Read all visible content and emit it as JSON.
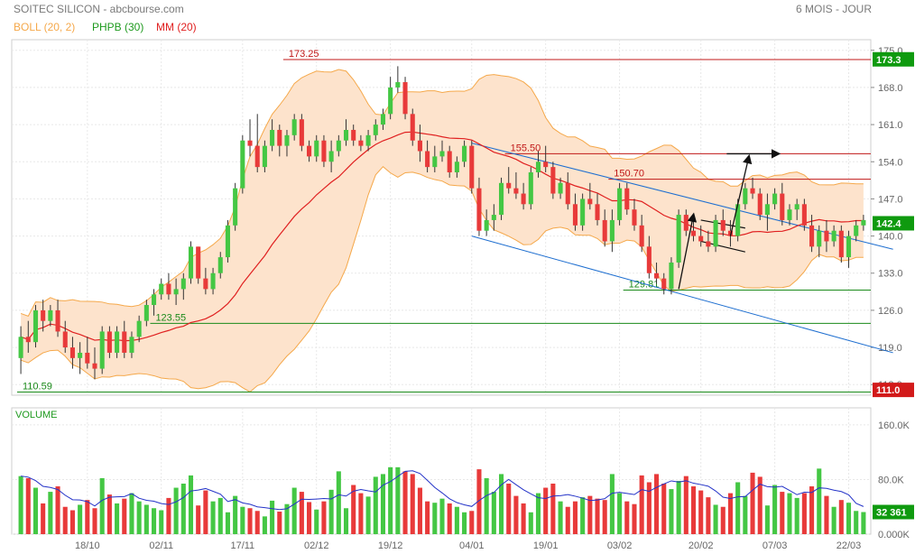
{
  "header": {
    "title": "SOITEC SILICON - abcbourse.com",
    "period": "6 MOIS - JOUR"
  },
  "legend": [
    {
      "label": "BOLL (20, 2)",
      "color": "#f5a84a"
    },
    {
      "label": "PHPB (30)",
      "color": "#1e9a1e"
    },
    {
      "label": "MM (20)",
      "color": "#e02020"
    }
  ],
  "colors": {
    "up": "#44c744",
    "down": "#e83a3a",
    "band_fill": "#fde3cc",
    "band_line": "#f5a84a",
    "mm": "#e02020",
    "volume_avg": "#2433c8",
    "trendline": "#1f6fd0",
    "support": "#1a8a1a",
    "resistance": "#c01818",
    "last_price_tag": "#0f9a0f",
    "low_tag": "#d21a1a"
  },
  "chart_data": {
    "type": "candlestick",
    "price_axis": {
      "range": [
        110,
        177
      ],
      "ticks": [
        "175.0",
        "168.0",
        "161.0",
        "154.0",
        "147.0",
        "140.0",
        "133.0",
        "126.0",
        "119.0",
        "112.0"
      ],
      "tick_values": [
        175,
        168,
        161,
        154,
        147,
        140,
        133,
        126,
        119,
        112
      ]
    },
    "x_axis": {
      "ticks": [
        "18/10",
        "02/11",
        "17/11",
        "02/12",
        "19/12",
        "04/01",
        "19/01",
        "03/02",
        "20/02",
        "07/03",
        "22/03"
      ],
      "tick_index": [
        9,
        19,
        30,
        40,
        50,
        61,
        71,
        81,
        92,
        102,
        112
      ]
    },
    "price_tags": [
      {
        "label": "173.3",
        "value": 173.3,
        "kind": "high"
      },
      {
        "label": "142.4",
        "value": 142.4,
        "kind": "last"
      },
      {
        "label": "111.0",
        "value": 111.0,
        "kind": "low"
      }
    ],
    "level_lines": [
      {
        "label": "173.25",
        "value": 173.25,
        "color_key": "resistance",
        "from": 36
      },
      {
        "label": "155.50",
        "value": 155.5,
        "color_key": "resistance",
        "from": 66
      },
      {
        "label": "150.70",
        "value": 150.7,
        "color_key": "resistance",
        "from": 80
      },
      {
        "label": "129.81",
        "value": 129.81,
        "color_key": "support",
        "from": 82
      },
      {
        "label": "123.55",
        "value": 123.55,
        "color_key": "support",
        "from": 18
      },
      {
        "label": "110.59",
        "value": 110.59,
        "color_key": "support",
        "from": 0
      }
    ],
    "trendlines": [
      {
        "x1": 61,
        "y1": 157.5,
        "x2": 118,
        "y2": 137.5
      },
      {
        "x1": 61,
        "y1": 140.0,
        "x2": 118,
        "y2": 118.0
      }
    ],
    "pattern_lines": [
      {
        "x1": 92,
        "y1": 143.0,
        "x2": 98,
        "y2": 141.5
      },
      {
        "x1": 92,
        "y1": 139.0,
        "x2": 98,
        "y2": 137.0
      }
    ],
    "arrows": [
      {
        "x1": 89,
        "y1": 130.0,
        "x2": 91,
        "y2": 144.0
      },
      {
        "x1": 96,
        "y1": 140.0,
        "x2": 98.5,
        "y2": 155.0
      },
      {
        "x1": 95.5,
        "y1": 155.5,
        "x2": 102.5,
        "y2": 155.5
      }
    ],
    "candles": [
      [
        117,
        123,
        114,
        121
      ],
      [
        121,
        124,
        118,
        120
      ],
      [
        120,
        127,
        119,
        126
      ],
      [
        126,
        128,
        122,
        124
      ],
      [
        124,
        127,
        123,
        126
      ],
      [
        126,
        128,
        121,
        122
      ],
      [
        122,
        124,
        118,
        119
      ],
      [
        119,
        121,
        115,
        117
      ],
      [
        117,
        120,
        114,
        118
      ],
      [
        118,
        121,
        115,
        116
      ],
      [
        116,
        119,
        113,
        115
      ],
      [
        115,
        123,
        114,
        122
      ],
      [
        122,
        123,
        117,
        118
      ],
      [
        118,
        123,
        117,
        122
      ],
      [
        122,
        124,
        117,
        118
      ],
      [
        118,
        122,
        117,
        121
      ],
      [
        121,
        125,
        120,
        124
      ],
      [
        124,
        128,
        123,
        127
      ],
      [
        127,
        130,
        125,
        129
      ],
      [
        129,
        132,
        128,
        131
      ],
      [
        131,
        133,
        128,
        129
      ],
      [
        129,
        132,
        127,
        130
      ],
      [
        130,
        133,
        128,
        132
      ],
      [
        132,
        139,
        131,
        138
      ],
      [
        138,
        138,
        131,
        132
      ],
      [
        132,
        134,
        129,
        130
      ],
      [
        130,
        134,
        129,
        133
      ],
      [
        133,
        137,
        132,
        136
      ],
      [
        136,
        143,
        135,
        142
      ],
      [
        142,
        150,
        141,
        149
      ],
      [
        149,
        159,
        148,
        158
      ],
      [
        158,
        162,
        155,
        157
      ],
      [
        157,
        163,
        152,
        153
      ],
      [
        153,
        158,
        152,
        157
      ],
      [
        157,
        162,
        156,
        160
      ],
      [
        160,
        161,
        155,
        157
      ],
      [
        157,
        160,
        155,
        159
      ],
      [
        159,
        163,
        158,
        162
      ],
      [
        162,
        163,
        156,
        157
      ],
      [
        157,
        158,
        154,
        155
      ],
      [
        155,
        159,
        154,
        158
      ],
      [
        158,
        159,
        153,
        154
      ],
      [
        154,
        158,
        152,
        156
      ],
      [
        156,
        159,
        155,
        158
      ],
      [
        158,
        162,
        157,
        160
      ],
      [
        160,
        161,
        157,
        158
      ],
      [
        158,
        159,
        156,
        157
      ],
      [
        157,
        160,
        156,
        159
      ],
      [
        159,
        162,
        158,
        161
      ],
      [
        161,
        164,
        160,
        163
      ],
      [
        163,
        170,
        162,
        168
      ],
      [
        168,
        172,
        167,
        169
      ],
      [
        169,
        170,
        162,
        163
      ],
      [
        163,
        164,
        157,
        158
      ],
      [
        158,
        161,
        154,
        156
      ],
      [
        156,
        158,
        152,
        153
      ],
      [
        153,
        157,
        152,
        155
      ],
      [
        155,
        158,
        154,
        156
      ],
      [
        156,
        157,
        151,
        152
      ],
      [
        152,
        155,
        151,
        154
      ],
      [
        154,
        158,
        153,
        157
      ],
      [
        157,
        158,
        148,
        149
      ],
      [
        149,
        151,
        140,
        141
      ],
      [
        141,
        145,
        140,
        143
      ],
      [
        143,
        146,
        141,
        144
      ],
      [
        144,
        151,
        143,
        150
      ],
      [
        150,
        153,
        148,
        149
      ],
      [
        149,
        152,
        147,
        148
      ],
      [
        148,
        150,
        145,
        146
      ],
      [
        146,
        153,
        145,
        152
      ],
      [
        152,
        156,
        151,
        154
      ],
      [
        154,
        157,
        152,
        153
      ],
      [
        153,
        154,
        147,
        148
      ],
      [
        148,
        151,
        147,
        150
      ],
      [
        150,
        152,
        145,
        146
      ],
      [
        146,
        148,
        141,
        142
      ],
      [
        142,
        148,
        141,
        147
      ],
      [
        147,
        150,
        145,
        146
      ],
      [
        146,
        148,
        142,
        143
      ],
      [
        143,
        145,
        138,
        139
      ],
      [
        139,
        145,
        137,
        143
      ],
      [
        143,
        150,
        142,
        149
      ],
      [
        149,
        150,
        144,
        145
      ],
      [
        145,
        147,
        141,
        142
      ],
      [
        142,
        144,
        137,
        138
      ],
      [
        138,
        140,
        132,
        133
      ],
      [
        133,
        135,
        131,
        132
      ],
      [
        132,
        133,
        129,
        130
      ],
      [
        130,
        136,
        129,
        135
      ],
      [
        135,
        145,
        134,
        144
      ],
      [
        144,
        145,
        140,
        141
      ],
      [
        141,
        143,
        139,
        140
      ],
      [
        140,
        142,
        138,
        139
      ],
      [
        139,
        141,
        137,
        138
      ],
      [
        138,
        144,
        137,
        143
      ],
      [
        143,
        145,
        140,
        141
      ],
      [
        141,
        143,
        138,
        140
      ],
      [
        140,
        147,
        139,
        146
      ],
      [
        146,
        150,
        145,
        149
      ],
      [
        149,
        151,
        147,
        148
      ],
      [
        148,
        149,
        143,
        144
      ],
      [
        144,
        148,
        141,
        146
      ],
      [
        146,
        149,
        145,
        148
      ],
      [
        148,
        150,
        142,
        143
      ],
      [
        143,
        146,
        142,
        145
      ],
      [
        145,
        147,
        143,
        146
      ],
      [
        146,
        147,
        141,
        142
      ],
      [
        142,
        144,
        137,
        138
      ],
      [
        138,
        142,
        136,
        141
      ],
      [
        141,
        143,
        137,
        139
      ],
      [
        139,
        142,
        138,
        141
      ],
      [
        141,
        142,
        135,
        136
      ],
      [
        136,
        141,
        134,
        140
      ],
      [
        140,
        143,
        139,
        142
      ],
      [
        142,
        144,
        141,
        143
      ]
    ],
    "volume_axis": {
      "range": [
        0,
        185000
      ],
      "ticks": [
        "160.0K",
        "80.0K",
        "0.000K"
      ],
      "tick_values": [
        160000,
        80000,
        0
      ],
      "last_label": "32 361",
      "last_value": 32361,
      "title": "VOLUME"
    },
    "volumes": [
      85000,
      82000,
      68000,
      45000,
      62000,
      70000,
      40000,
      35000,
      43000,
      50000,
      38000,
      82000,
      58000,
      45000,
      52000,
      60000,
      48000,
      43000,
      38000,
      35000,
      53000,
      68000,
      74000,
      86000,
      42000,
      64000,
      48000,
      53000,
      32000,
      56000,
      40000,
      38000,
      34000,
      26000,
      49000,
      33000,
      44000,
      68000,
      62000,
      47000,
      36000,
      48000,
      65000,
      92000,
      38000,
      72000,
      60000,
      55000,
      84000,
      88000,
      98000,
      98000,
      92000,
      88000,
      68000,
      48000,
      46000,
      52000,
      45000,
      40000,
      32000,
      34000,
      95000,
      82000,
      62000,
      88000,
      74000,
      56000,
      45000,
      32000,
      60000,
      68000,
      74000,
      48000,
      40000,
      48000,
      54000,
      56000,
      52000,
      50000,
      88000,
      60000,
      48000,
      44000,
      86000,
      76000,
      88000,
      74000,
      66000,
      78000,
      85000,
      70000,
      64000,
      54000,
      43000,
      40000,
      60000,
      76000,
      56000,
      90000,
      84000,
      42000,
      72000,
      62000,
      60000,
      53000,
      60000,
      70000,
      96000,
      56000,
      40000,
      50000,
      46000,
      34000,
      32361
    ]
  }
}
